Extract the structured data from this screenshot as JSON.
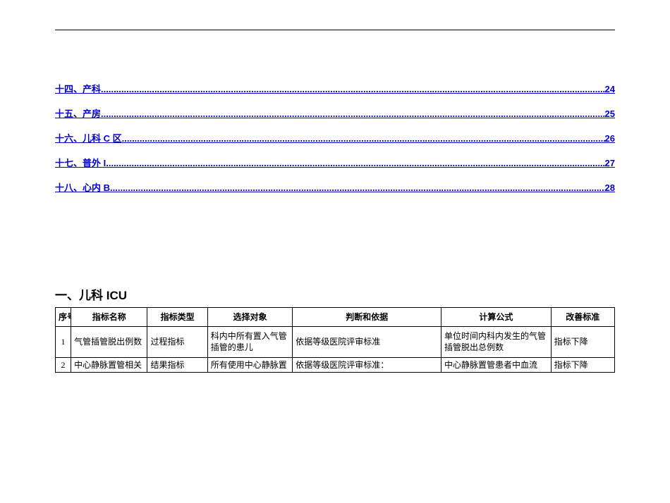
{
  "toc": {
    "items": [
      {
        "label": "十四、产科",
        "page": "24"
      },
      {
        "label": "十五、产房",
        "page": "25"
      },
      {
        "label": "十六、儿科 C 区",
        "page": "26"
      },
      {
        "label": "十七、普外 I",
        "page": "27"
      },
      {
        "label": "十八、心内 B",
        "page": "28"
      }
    ]
  },
  "section": {
    "title": "一、儿科 ICU"
  },
  "table": {
    "headers": {
      "seq": "序号",
      "name": "指标名称",
      "type": "指标类型",
      "target": "选择对象",
      "criteria": "判断和依据",
      "formula": "计算公式",
      "improve": "改善标准"
    },
    "rows": [
      {
        "seq": "1",
        "name": "气管插管脱出例数",
        "type": "过程指标",
        "target": "科内中所有置入气管插管的患儿",
        "criteria": "依据等级医院评审标准",
        "formula": "单位时间内科内发生的气管插管脱出总例数",
        "improve": "指标下降"
      },
      {
        "seq": "2",
        "name": "中心静脉置管相关",
        "type": "结果指标",
        "target": "所有使用中心静脉置",
        "criteria": "依据等级医院评审标准：",
        "formula": "中心静脉置管患者中血流",
        "improve": "指标下降"
      }
    ]
  }
}
